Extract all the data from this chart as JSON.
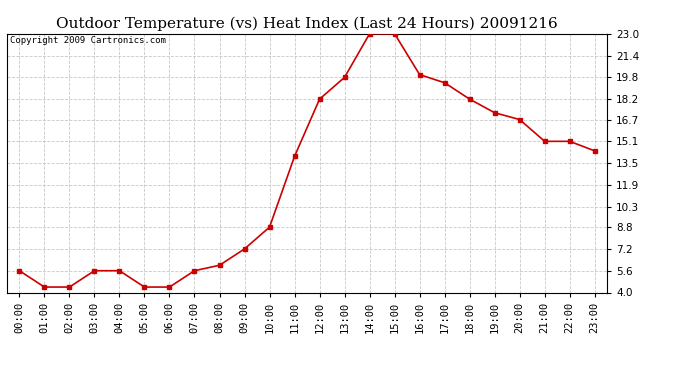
{
  "title": "Outdoor Temperature (vs) Heat Index (Last 24 Hours) 20091216",
  "copyright": "Copyright 2009 Cartronics.com",
  "line_color": "#cc0000",
  "marker": "s",
  "marker_size": 3,
  "background_color": "#ffffff",
  "grid_color": "#c8c8c8",
  "x_labels": [
    "00:00",
    "01:00",
    "02:00",
    "03:00",
    "04:00",
    "05:00",
    "06:00",
    "07:00",
    "08:00",
    "09:00",
    "10:00",
    "11:00",
    "12:00",
    "13:00",
    "14:00",
    "15:00",
    "16:00",
    "17:00",
    "18:00",
    "19:00",
    "20:00",
    "21:00",
    "22:00",
    "23:00"
  ],
  "y_values": [
    5.6,
    4.4,
    4.4,
    5.6,
    5.6,
    4.4,
    4.4,
    5.6,
    6.0,
    7.2,
    8.8,
    14.0,
    18.2,
    19.8,
    23.0,
    23.0,
    20.0,
    19.4,
    18.2,
    17.2,
    16.7,
    15.1,
    15.1,
    14.4
  ],
  "ylim": [
    4.0,
    23.0
  ],
  "yticks": [
    4.0,
    5.6,
    7.2,
    8.8,
    10.3,
    11.9,
    13.5,
    15.1,
    16.7,
    18.2,
    19.8,
    21.4,
    23.0
  ],
  "title_fontsize": 11,
  "copyright_fontsize": 6.5,
  "tick_fontsize": 7.5,
  "linewidth": 1.2
}
